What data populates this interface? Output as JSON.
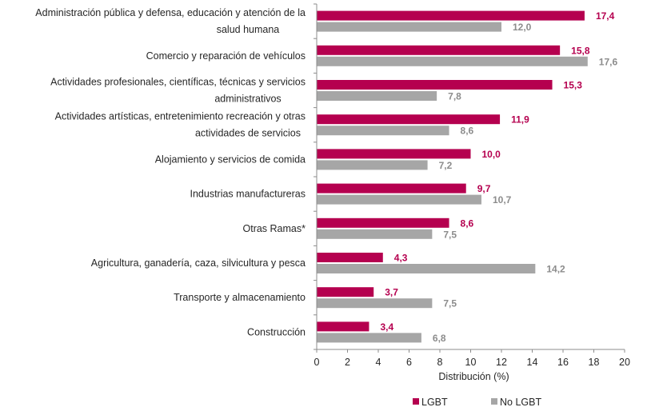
{
  "chart_data": {
    "type": "bar",
    "orientation": "horizontal",
    "title": "",
    "xlabel": "Distribución (%)",
    "ylabel": "",
    "xlim": [
      0,
      20
    ],
    "xticks": [
      "0",
      "2",
      "4",
      "6",
      "8",
      "10",
      "12",
      "14",
      "16",
      "18",
      "20"
    ],
    "grid": false,
    "legend_position": "bottom",
    "categories": [
      [
        "Administración pública y defensa, educación y atención de la",
        "salud humana"
      ],
      [
        "Comercio y reparación de vehículos"
      ],
      [
        "Actividades profesionales, científicas, técnicas y servicios",
        "administrativos"
      ],
      [
        "Actividades artísticas, entretenimiento recreación y otras",
        "actividades de servicios"
      ],
      [
        "Alojamiento y servicios de comida"
      ],
      [
        "Industrias manufactureras"
      ],
      [
        "Otras Ramas*"
      ],
      [
        "Agricultura, ganadería, caza, silvicultura y pesca"
      ],
      [
        "Transporte y almacenamiento"
      ],
      [
        "Construcción"
      ]
    ],
    "series": [
      {
        "name": "LGBT",
        "color": "#b5004f",
        "values": [
          17.4,
          15.8,
          15.3,
          11.9,
          10.0,
          9.7,
          8.6,
          4.3,
          3.7,
          3.4
        ],
        "labels": [
          "17,4",
          "15,8",
          "15,3",
          "11,9",
          "10,0",
          "9,7",
          "8,6",
          "4,3",
          "3,7",
          "3,4"
        ]
      },
      {
        "name": "No LGBT",
        "color": "#a6a6a6",
        "values": [
          12.0,
          17.6,
          7.8,
          8.6,
          7.2,
          10.7,
          7.5,
          14.2,
          7.5,
          6.8
        ],
        "labels": [
          "12,0",
          "17,6",
          "7,8",
          "8,6",
          "7,2",
          "10,7",
          "7,5",
          "14,2",
          "7,5",
          "6,8"
        ]
      }
    ]
  }
}
